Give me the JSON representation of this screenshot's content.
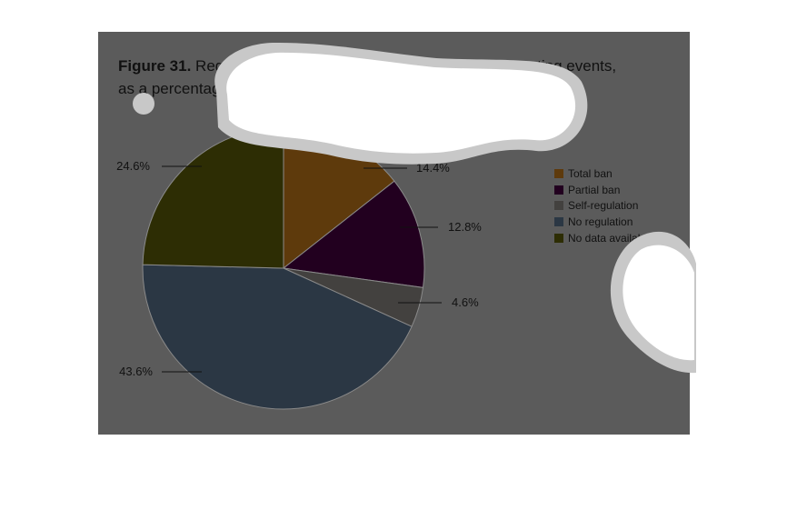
{
  "figure": {
    "label": "Figure 31.",
    "title_line1": "Regulation of alcohol industry sponsorship of sporting events,",
    "title_line2": "as a percentage of all WHO Member States, 2008"
  },
  "colors": {
    "panel": "#5b5b5b",
    "overlay_white": "#ffffff",
    "overlay_halo": "#c8c8c8"
  },
  "chart_data": {
    "type": "pie",
    "title": "Regulation of alcohol industry sponsorship of sporting events, as a percentage of all WHO Member States, 2008",
    "legend_position": "right",
    "slices": [
      {
        "name": "Total ban",
        "value": 14.4,
        "label": "14.4%",
        "color": "#5e3a0c"
      },
      {
        "name": "Partial ban",
        "value": 12.8,
        "label": "12.8%",
        "color": "#22001f"
      },
      {
        "name": "Self-regulation",
        "value": 4.6,
        "label": "4.6%",
        "color": "#43413f"
      },
      {
        "name": "No regulation",
        "value": 43.6,
        "label": "43.6%",
        "color": "#2b3744"
      },
      {
        "name": "No data available",
        "value": 24.6,
        "label": "24.6%",
        "color": "#2d2d04"
      }
    ]
  }
}
